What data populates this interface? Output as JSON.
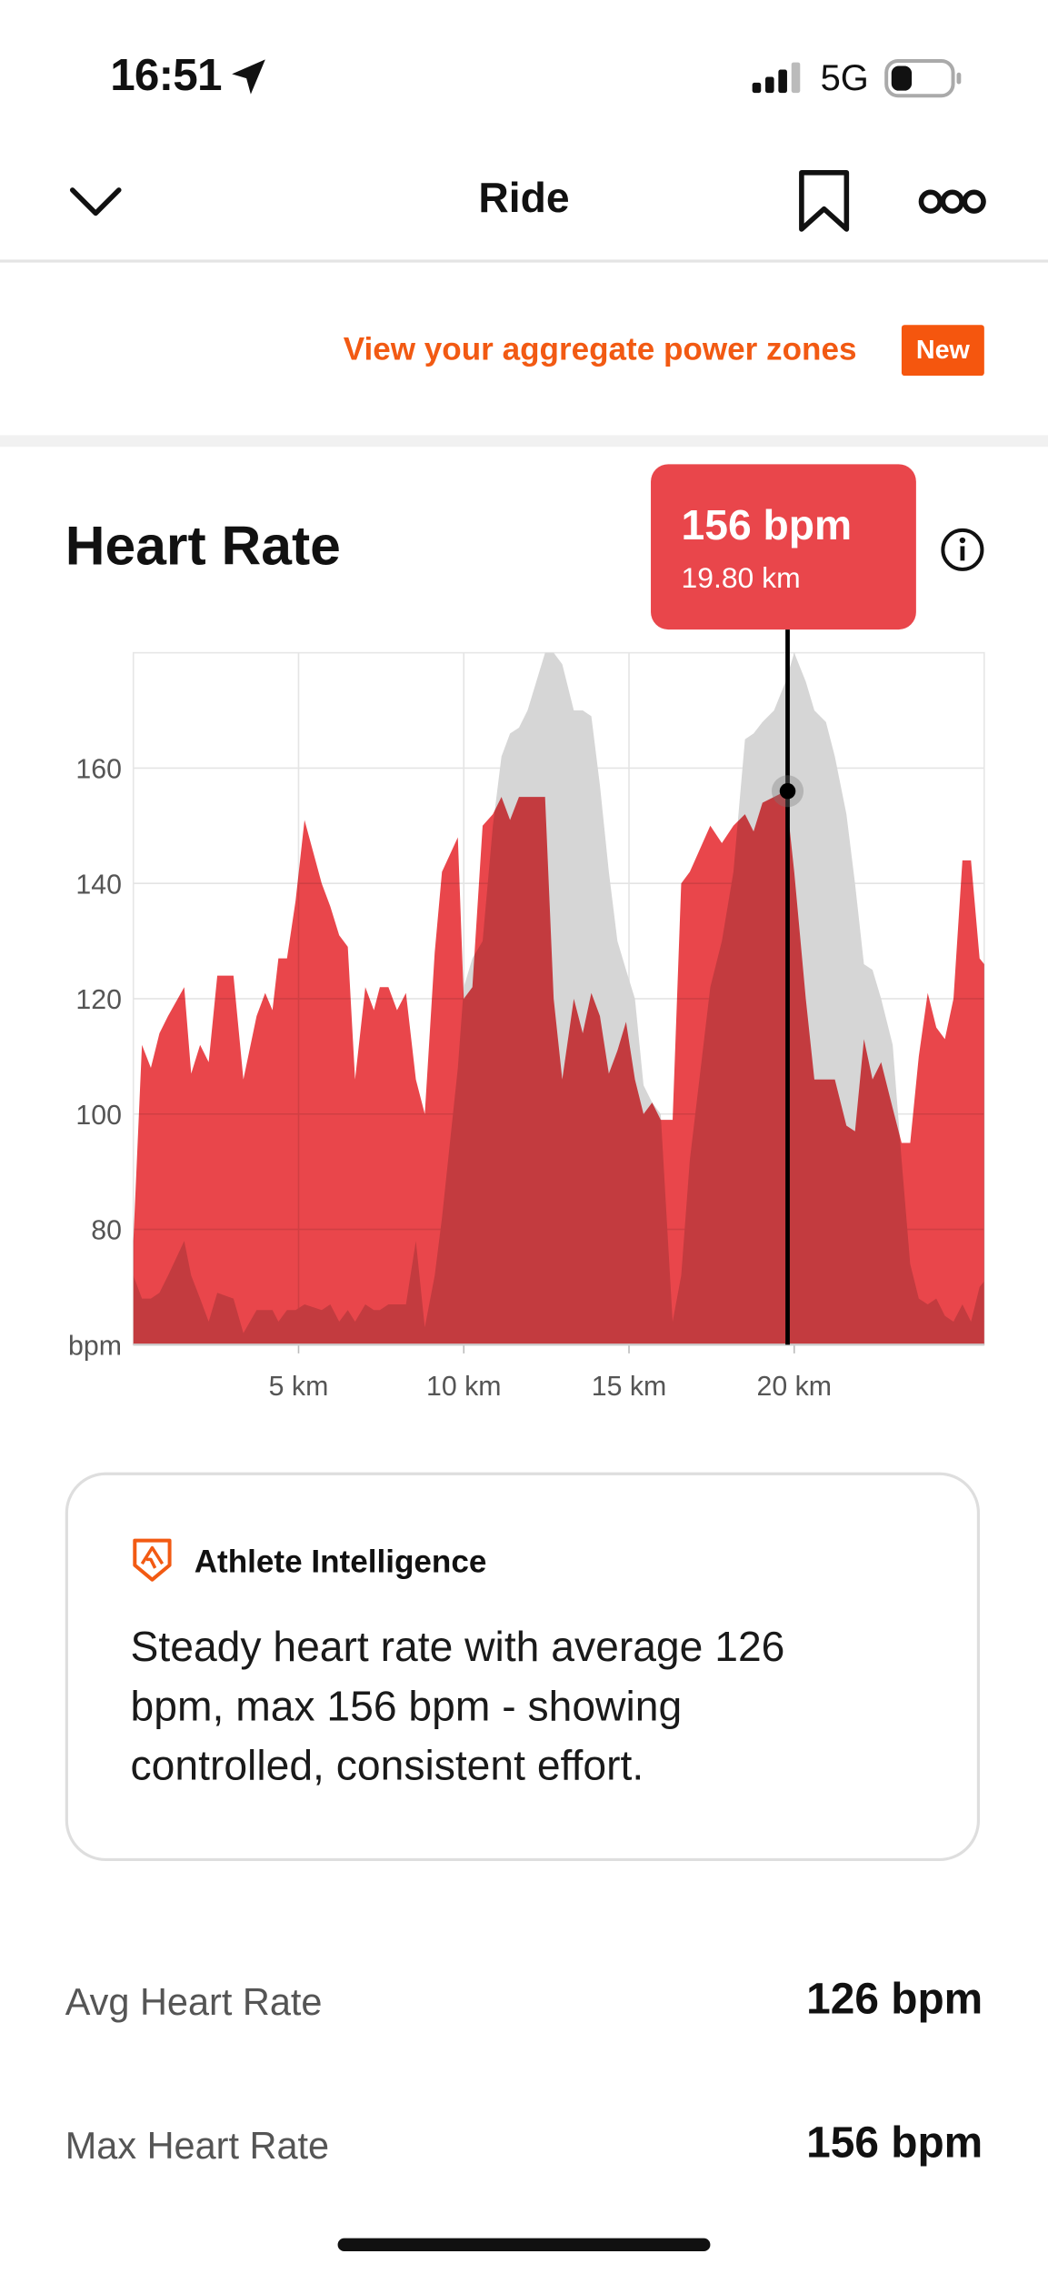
{
  "status_bar": {
    "time": "16:51",
    "network": "5G"
  },
  "nav": {
    "title": "Ride"
  },
  "banner": {
    "text": "View your aggregate power zones",
    "badge": "New"
  },
  "heart_rate": {
    "title": "Heart Rate"
  },
  "chart_data": {
    "type": "area",
    "x": [
      0,
      0.26,
      0.53,
      0.79,
      1.05,
      1.54,
      1.75,
      2.02,
      2.28,
      2.54,
      3.03,
      3.33,
      3.73,
      3.99,
      4.21,
      4.39,
      4.65,
      4.91,
      5.18,
      5.7,
      5.96,
      6.23,
      6.49,
      6.71,
      7.02,
      7.28,
      7.46,
      7.72,
      7.98,
      8.25,
      8.55,
      8.82,
      9.12,
      9.34,
      9.82,
      10.0,
      10.26,
      10.57,
      10.88,
      11.14,
      11.4,
      11.67,
      11.93,
      12.46,
      12.72,
      12.98,
      13.33,
      13.6,
      13.86,
      14.12,
      14.39,
      14.65,
      14.91,
      15.18,
      15.44,
      15.7,
      15.96,
      16.32,
      16.58,
      16.84,
      17.46,
      17.81,
      18.16,
      18.51,
      18.77,
      19.04,
      19.39,
      19.74,
      20.0,
      20.35,
      20.61,
      20.96,
      21.23,
      21.58,
      21.84,
      22.11,
      22.37,
      22.63,
      22.98,
      23.25,
      23.51,
      23.77,
      24.04,
      24.3,
      24.56,
      24.82,
      25.09,
      25.35,
      25.61,
      25.75
    ],
    "series": [
      {
        "color": "#d6d6d6",
        "values": [
          72,
          68,
          68,
          69,
          72,
          78,
          72,
          68,
          64,
          69,
          68,
          62,
          66,
          66,
          66,
          64,
          66,
          66,
          67,
          66,
          67,
          64,
          66,
          64,
          67,
          66,
          66,
          67,
          67,
          67,
          78,
          63,
          72,
          82,
          108,
          122,
          127,
          130,
          150,
          162,
          166,
          167,
          170,
          180,
          180,
          178,
          170,
          170,
          169,
          157,
          142,
          130,
          125,
          120,
          105,
          102,
          100,
          64,
          72,
          92,
          122,
          130,
          142,
          165,
          166,
          168,
          170,
          175,
          180,
          175,
          170,
          168,
          162,
          152,
          140,
          126,
          125,
          120,
          112,
          92,
          74,
          68,
          67,
          68,
          65,
          64,
          67,
          64,
          70,
          71
        ]
      },
      {
        "color": "#e9464b",
        "values": [
          78,
          112,
          108,
          114,
          117,
          122,
          107,
          112,
          109,
          124,
          124,
          106,
          117,
          121,
          118,
          127,
          127,
          137,
          151,
          140,
          136,
          131,
          129,
          106,
          122,
          118,
          122,
          122,
          118,
          121,
          106,
          100,
          128,
          142,
          148,
          120,
          122,
          150,
          152,
          155,
          151,
          155,
          155,
          155,
          120,
          106,
          120,
          114,
          121,
          117,
          107,
          111,
          116,
          106,
          100,
          102,
          99,
          99,
          140,
          142,
          150,
          147,
          150,
          152,
          149,
          154,
          155,
          156,
          142,
          120,
          106,
          106,
          106,
          98,
          97,
          113,
          106,
          109,
          101,
          95,
          95,
          110,
          121,
          115,
          113,
          120,
          144,
          144,
          127,
          126
        ]
      }
    ],
    "xlim": [
      0,
      25.75
    ],
    "ylim": [
      60,
      180
    ],
    "xticks": [
      {
        "value": 5,
        "label": "5 km"
      },
      {
        "value": 10,
        "label": "10 km"
      },
      {
        "value": 15,
        "label": "15 km"
      },
      {
        "value": 20,
        "label": "20 km"
      }
    ],
    "yticks": [
      {
        "value": 60,
        "label": "bpm"
      },
      80,
      100,
      120,
      140,
      160
    ],
    "grid": true,
    "cursor": {
      "x": 19.8,
      "y": 156,
      "y_label": "156 bpm",
      "x_label": "19.80 km"
    }
  },
  "insight": {
    "title": "Athlete Intelligence",
    "text": "Steady heart rate with average 126 bpm, max 156 bpm - showing controlled, consistent effort."
  },
  "stats": [
    {
      "label": "Avg Heart Rate",
      "value": "126 bpm"
    },
    {
      "label": "Max Heart Rate",
      "value": "156 bpm"
    }
  ]
}
